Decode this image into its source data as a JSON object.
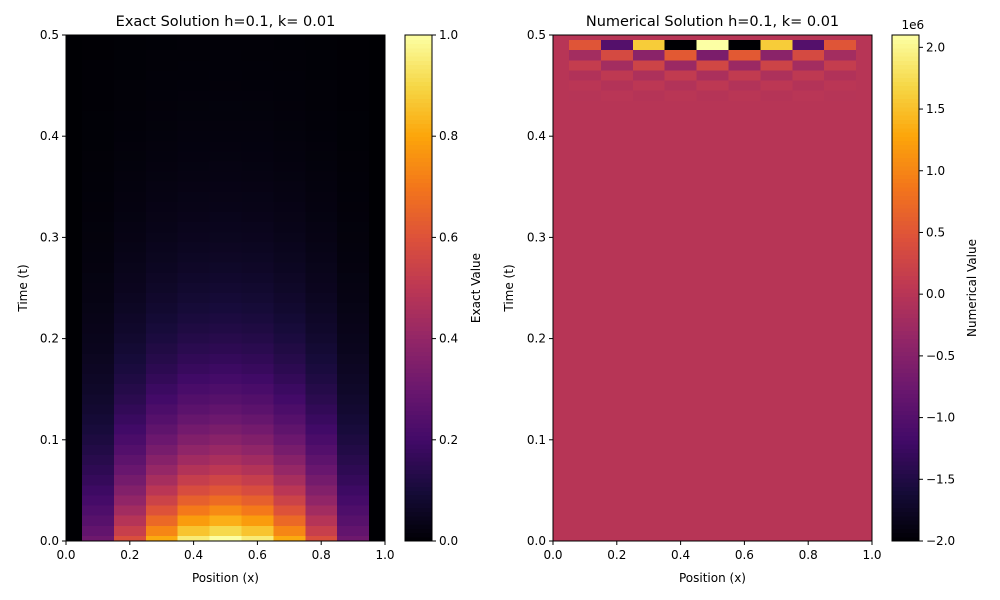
{
  "chart_data": [
    {
      "type": "heatmap",
      "title": "Exact Solution h=0.1, k= 0.01",
      "xlabel": "Position (x)",
      "ylabel": "Time (t)",
      "xlim": [
        0.0,
        1.0
      ],
      "ylim": [
        0.0,
        0.5
      ],
      "x_ticks": [
        "0.0",
        "0.2",
        "0.4",
        "0.6",
        "0.8",
        "1.0"
      ],
      "y_ticks": [
        "0.0",
        "0.1",
        "0.2",
        "0.3",
        "0.4",
        "0.5"
      ],
      "colormap": "inferno",
      "grid_dx": 0.1,
      "grid_dt": 0.01,
      "field": "sin(pi*x)*exp(-pi^2*t)",
      "colorbar": {
        "label": "Exact Value",
        "range": [
          0.0,
          1.0
        ],
        "ticks": [
          "0.0",
          "0.2",
          "0.4",
          "0.6",
          "0.8",
          "1.0"
        ],
        "tick_values": [
          0.0,
          0.2,
          0.4,
          0.6,
          0.8,
          1.0
        ],
        "offset_label": ""
      }
    },
    {
      "type": "heatmap",
      "title": "Numerical Solution h=0.1, k= 0.01",
      "xlabel": "Position (x)",
      "ylabel": "Time (t)",
      "xlim": [
        0.0,
        1.0
      ],
      "ylim": [
        0.0,
        0.5
      ],
      "x_ticks": [
        "0.0",
        "0.2",
        "0.4",
        "0.6",
        "0.8",
        "1.0"
      ],
      "y_ticks": [
        "0.0",
        "0.1",
        "0.2",
        "0.3",
        "0.4",
        "0.5"
      ],
      "colormap": "inferno",
      "background_value": 0,
      "unstable_rows": [
        {
          "t": 0.49,
          "values": [
            0,
            500000,
            -1000000,
            1600000,
            -2000000,
            2100000,
            -2000000,
            1600000,
            -1000000,
            500000,
            0
          ]
        },
        {
          "t": 0.48,
          "values": [
            0,
            -200000,
            350000,
            -450000,
            550000,
            -600000,
            550000,
            -450000,
            350000,
            -200000,
            0
          ]
        },
        {
          "t": 0.47,
          "values": [
            0,
            150000,
            -200000,
            250000,
            -280000,
            300000,
            -280000,
            250000,
            -200000,
            150000,
            0
          ]
        },
        {
          "t": 0.46,
          "values": [
            0,
            -60000,
            80000,
            -100000,
            110000,
            -120000,
            110000,
            -100000,
            80000,
            -60000,
            0
          ]
        },
        {
          "t": 0.45,
          "values": [
            0,
            30000,
            -40000,
            50000,
            -55000,
            60000,
            -55000,
            50000,
            -40000,
            30000,
            0
          ]
        },
        {
          "t": 0.44,
          "values": [
            0,
            -10000,
            15000,
            -18000,
            20000,
            -22000,
            20000,
            -18000,
            15000,
            -10000,
            0
          ]
        }
      ],
      "colorbar": {
        "label": "Numerical Value",
        "range": [
          -2000000,
          2100000
        ],
        "ticks": [
          "−2.0",
          "−1.5",
          "−1.0",
          "−0.5",
          "0.0",
          "0.5",
          "1.0",
          "1.5",
          "2.0"
        ],
        "tick_values": [
          -2000000,
          -1500000,
          -1000000,
          -500000,
          0,
          500000,
          1000000,
          1500000,
          2000000
        ],
        "offset_label": "1e6"
      }
    }
  ]
}
